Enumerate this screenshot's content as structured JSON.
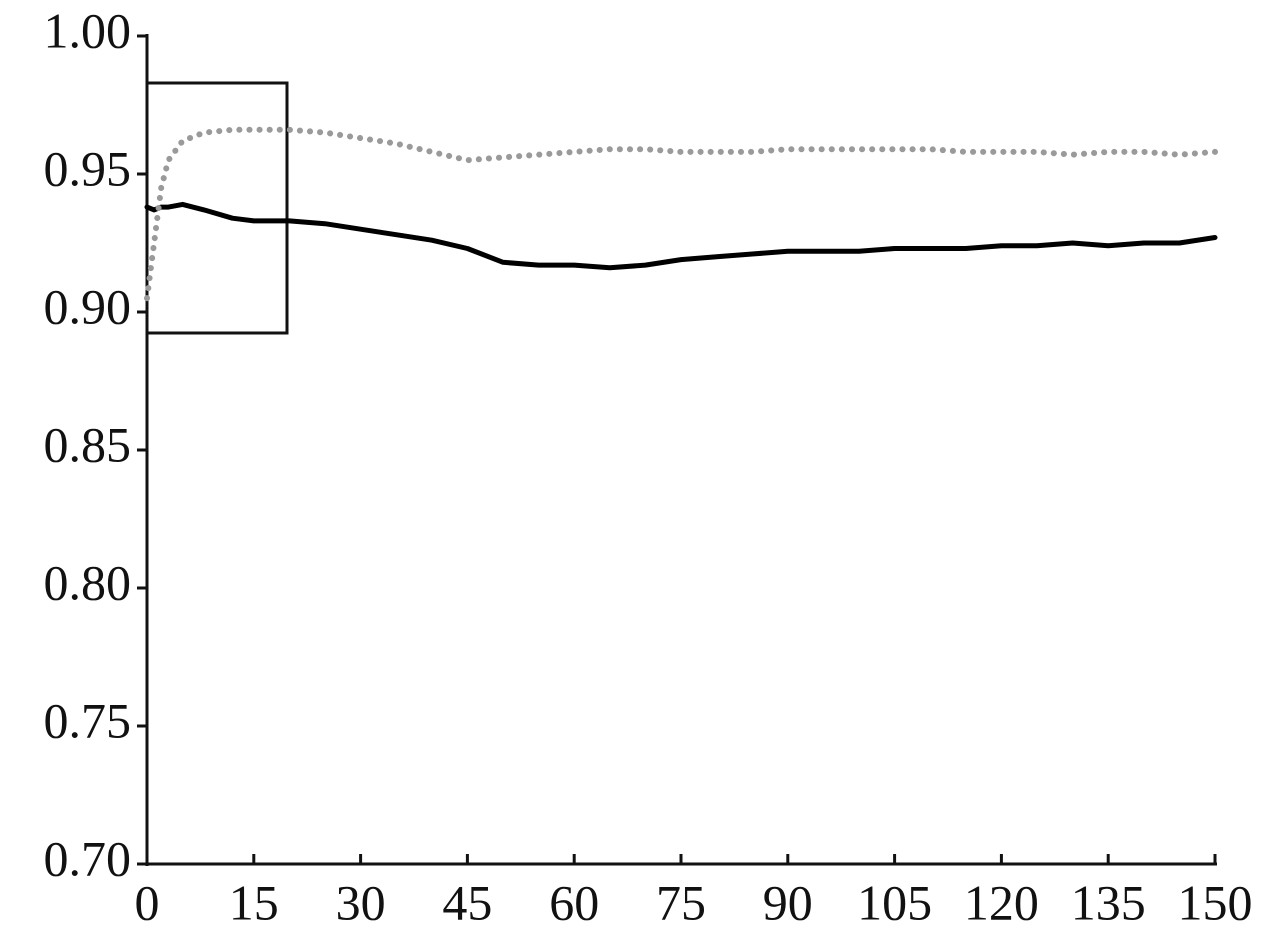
{
  "chart_data": {
    "type": "line",
    "x": [
      0,
      1,
      2,
      3,
      5,
      8,
      12,
      15,
      20,
      25,
      30,
      35,
      40,
      45,
      50,
      55,
      60,
      65,
      70,
      75,
      80,
      85,
      90,
      95,
      100,
      105,
      110,
      115,
      120,
      125,
      130,
      135,
      140,
      145,
      150
    ],
    "series": [
      {
        "color": "#000000",
        "style": "solid",
        "values": [
          0.938,
          0.937,
          0.938,
          0.938,
          0.939,
          0.937,
          0.934,
          0.933,
          0.933,
          0.932,
          0.93,
          0.928,
          0.926,
          0.923,
          0.918,
          0.917,
          0.917,
          0.916,
          0.917,
          0.919,
          0.92,
          0.921,
          0.922,
          0.922,
          0.922,
          0.923,
          0.923,
          0.923,
          0.924,
          0.924,
          0.925,
          0.924,
          0.925,
          0.925,
          0.927
        ]
      },
      {
        "color": "#9a9a9a",
        "style": "dotted",
        "values": [
          0.905,
          0.925,
          0.945,
          0.955,
          0.962,
          0.965,
          0.966,
          0.966,
          0.966,
          0.965,
          0.963,
          0.961,
          0.958,
          0.955,
          0.956,
          0.957,
          0.958,
          0.959,
          0.959,
          0.958,
          0.958,
          0.958,
          0.959,
          0.959,
          0.959,
          0.959,
          0.959,
          0.958,
          0.958,
          0.958,
          0.957,
          0.958,
          0.958,
          0.957,
          0.958
        ]
      }
    ],
    "xlim": [
      0,
      150
    ],
    "xticks": [
      0,
      15,
      30,
      45,
      60,
      75,
      90,
      105,
      120,
      135,
      150
    ],
    "ylim": [
      0.7,
      1.0
    ],
    "yticks": [
      {
        "value": 0.7,
        "label": "0.70"
      },
      0.75,
      {
        "value": 0.8,
        "label": "0.80"
      },
      0.85,
      {
        "value": 0.9,
        "label": "0.90"
      },
      0.95,
      {
        "value": 1.0,
        "label": "1.00"
      }
    ],
    "grid": false
  }
}
